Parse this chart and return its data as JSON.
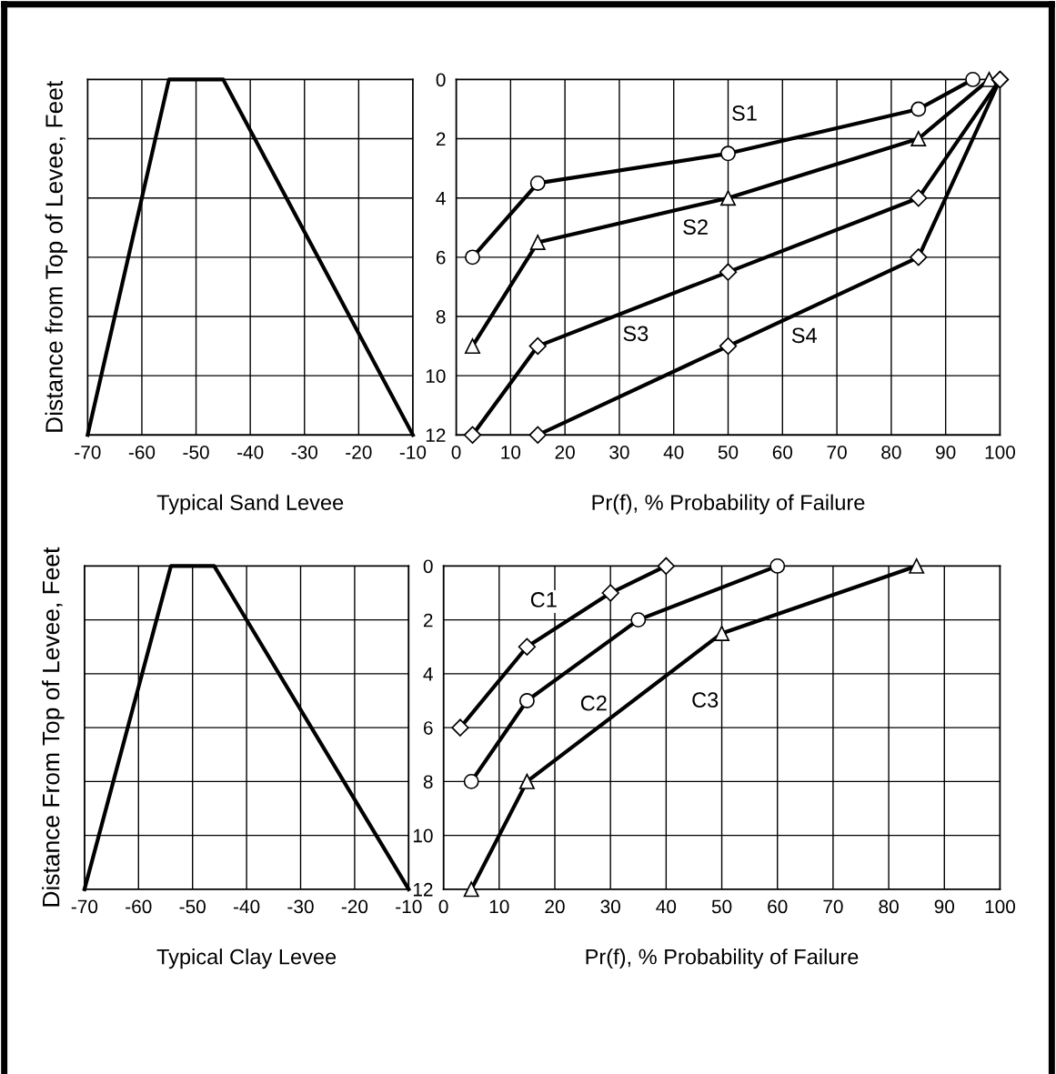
{
  "chart_data": [
    {
      "type": "line",
      "xlabel": "Typical Sand Levee",
      "ylabel": "Distance from Top of Levee, Feet",
      "x": [
        -70,
        -55,
        -45,
        -10
      ],
      "series": [
        {
          "color": "#000000",
          "values": [
            12,
            0,
            0,
            12
          ]
        }
      ],
      "xlim": [
        -70,
        -10
      ],
      "xticks": [
        -70,
        -60,
        -50,
        -40,
        -30,
        -20,
        -10
      ],
      "ylim": [
        12,
        0
      ],
      "yticks": [
        0,
        2,
        4,
        6,
        8,
        10,
        12
      ],
      "tick_labels": "x",
      "grid": true,
      "marker": "none"
    },
    {
      "type": "line",
      "xlabel": "Pr(f), % Probability of Failure",
      "series": [
        {
          "color": "#000000",
          "marker": "circle",
          "x": [
            3,
            15,
            50,
            85,
            95
          ],
          "values": [
            6,
            3.5,
            2.5,
            1,
            0
          ]
        },
        {
          "color": "#000000",
          "marker": "triangle",
          "x": [
            3,
            15,
            50,
            85,
            98
          ],
          "values": [
            9,
            5.5,
            4,
            2,
            0
          ]
        },
        {
          "color": "#000000",
          "marker": "diamond",
          "x": [
            3,
            15,
            50,
            85,
            100
          ],
          "values": [
            12,
            9,
            6.5,
            4,
            0
          ]
        },
        {
          "color": "#000000",
          "marker": "diamond",
          "x": [
            15,
            50,
            85,
            100
          ],
          "values": [
            12,
            9,
            6,
            0
          ]
        }
      ],
      "annotations": [
        "S1",
        "S2",
        "S3",
        "S4"
      ],
      "xlim": [
        0,
        100
      ],
      "xticks": [
        0,
        10,
        20,
        30,
        40,
        50,
        60,
        70,
        80,
        90,
        100
      ],
      "ylim": [
        12,
        0
      ],
      "yticks": [
        0,
        2,
        4,
        6,
        8,
        10,
        12
      ],
      "grid": true
    },
    {
      "type": "line",
      "xlabel": "Typical Clay Levee",
      "ylabel": "Distance From Top of Levee, Feet",
      "x": [
        -70,
        -54,
        -46,
        -10
      ],
      "series": [
        {
          "color": "#000000",
          "values": [
            12,
            0,
            0,
            12
          ]
        }
      ],
      "xlim": [
        -70,
        -10
      ],
      "xticks": [
        -70,
        -60,
        -50,
        -40,
        -30,
        -20,
        -10
      ],
      "ylim": [
        12,
        0
      ],
      "yticks": [
        0,
        2,
        4,
        6,
        8,
        10,
        12
      ],
      "tick_labels": "x",
      "grid": true,
      "marker": "none"
    },
    {
      "type": "line",
      "xlabel": "Pr(f), % Probability of Failure",
      "series": [
        {
          "color": "#000000",
          "marker": "diamond",
          "x": [
            3,
            15,
            30,
            40
          ],
          "values": [
            6,
            3,
            1,
            0
          ]
        },
        {
          "color": "#000000",
          "marker": "circle",
          "x": [
            5,
            15,
            35,
            60
          ],
          "values": [
            8,
            5,
            2,
            0
          ]
        },
        {
          "color": "#000000",
          "marker": "triangle",
          "x": [
            5,
            15,
            50,
            85
          ],
          "values": [
            12,
            8,
            2.5,
            0
          ]
        }
      ],
      "annotations": [
        "C1",
        "C2",
        "C3"
      ],
      "xlim": [
        0,
        100
      ],
      "xticks": [
        0,
        10,
        20,
        30,
        40,
        50,
        60,
        70,
        80,
        90,
        100
      ],
      "ylim": [
        12,
        0
      ],
      "yticks": [
        0,
        2,
        4,
        6,
        8,
        10,
        12
      ],
      "grid": true
    }
  ]
}
